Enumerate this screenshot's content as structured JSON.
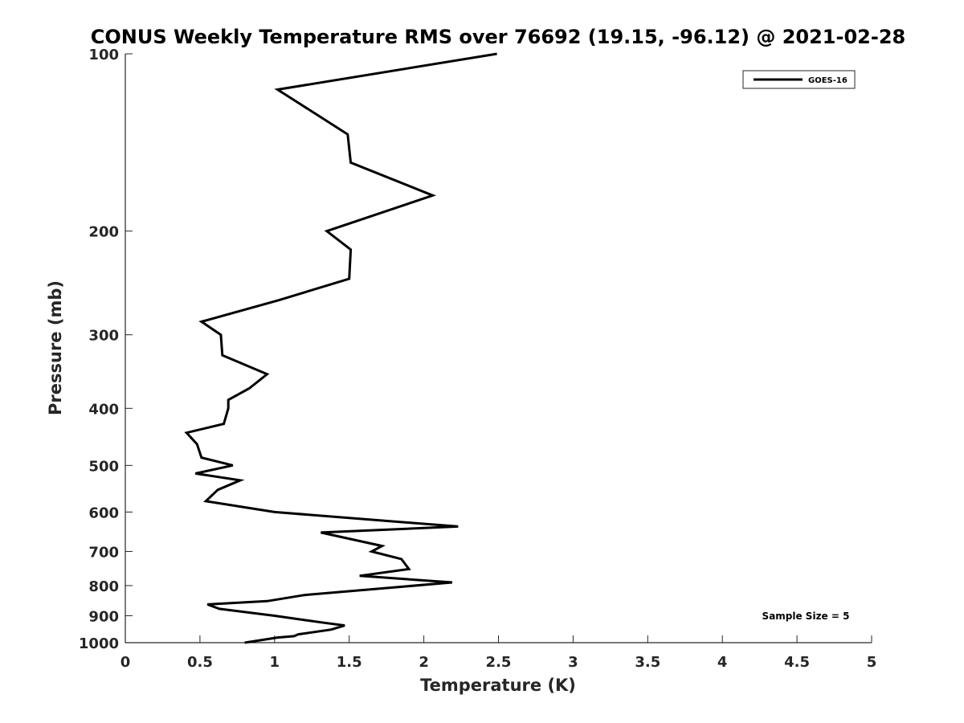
{
  "chart_data": {
    "type": "line",
    "title": "CONUS Weekly Temperature RMS over 76692 (19.15, -96.12) @ 2021-02-28",
    "xlabel": "Temperature (K)",
    "ylabel": "Pressure (mb)",
    "xlim": [
      0,
      5
    ],
    "ylim": [
      100,
      1000
    ],
    "y_scale": "log",
    "y_reversed": true,
    "x_ticks": [
      "0",
      "0.5",
      "1",
      "1.5",
      "2",
      "2.5",
      "3",
      "3.5",
      "4",
      "4.5",
      "5"
    ],
    "y_ticks": [
      "100",
      "200",
      "300",
      "400",
      "500",
      "600",
      "700",
      "800",
      "900",
      "1000"
    ],
    "grid": false,
    "legend_position": "top-right",
    "series": [
      {
        "name": "GOES-16",
        "color": "#000000",
        "points": [
          [
            2.49,
            100
          ],
          [
            1.02,
            115
          ],
          [
            1.49,
            137
          ],
          [
            1.51,
            153
          ],
          [
            2.06,
            174
          ],
          [
            1.35,
            200
          ],
          [
            1.51,
            215
          ],
          [
            1.5,
            241
          ],
          [
            1.03,
            262
          ],
          [
            0.51,
            285
          ],
          [
            0.64,
            300
          ],
          [
            0.65,
            325
          ],
          [
            0.95,
            350
          ],
          [
            0.83,
            370
          ],
          [
            0.69,
            387
          ],
          [
            0.69,
            400
          ],
          [
            0.66,
            425
          ],
          [
            0.41,
            440
          ],
          [
            0.48,
            460
          ],
          [
            0.51,
            485
          ],
          [
            0.72,
            500
          ],
          [
            0.47,
            516
          ],
          [
            0.77,
            530
          ],
          [
            0.62,
            550
          ],
          [
            0.54,
            575
          ],
          [
            1.0,
            600
          ],
          [
            2.23,
            635
          ],
          [
            1.31,
            650
          ],
          [
            1.72,
            685
          ],
          [
            1.65,
            700
          ],
          [
            1.85,
            721
          ],
          [
            1.9,
            750
          ],
          [
            1.57,
            770
          ],
          [
            2.19,
            790
          ],
          [
            1.2,
            830
          ],
          [
            0.95,
            850
          ],
          [
            0.55,
            861
          ],
          [
            0.63,
            876
          ],
          [
            1.0,
            900
          ],
          [
            1.33,
            925
          ],
          [
            1.47,
            935
          ],
          [
            1.38,
            950
          ],
          [
            1.16,
            968
          ],
          [
            1.13,
            975
          ],
          [
            1.02,
            980
          ],
          [
            0.8,
            1000
          ]
        ]
      }
    ],
    "annotation": "Sample Size = 5"
  }
}
